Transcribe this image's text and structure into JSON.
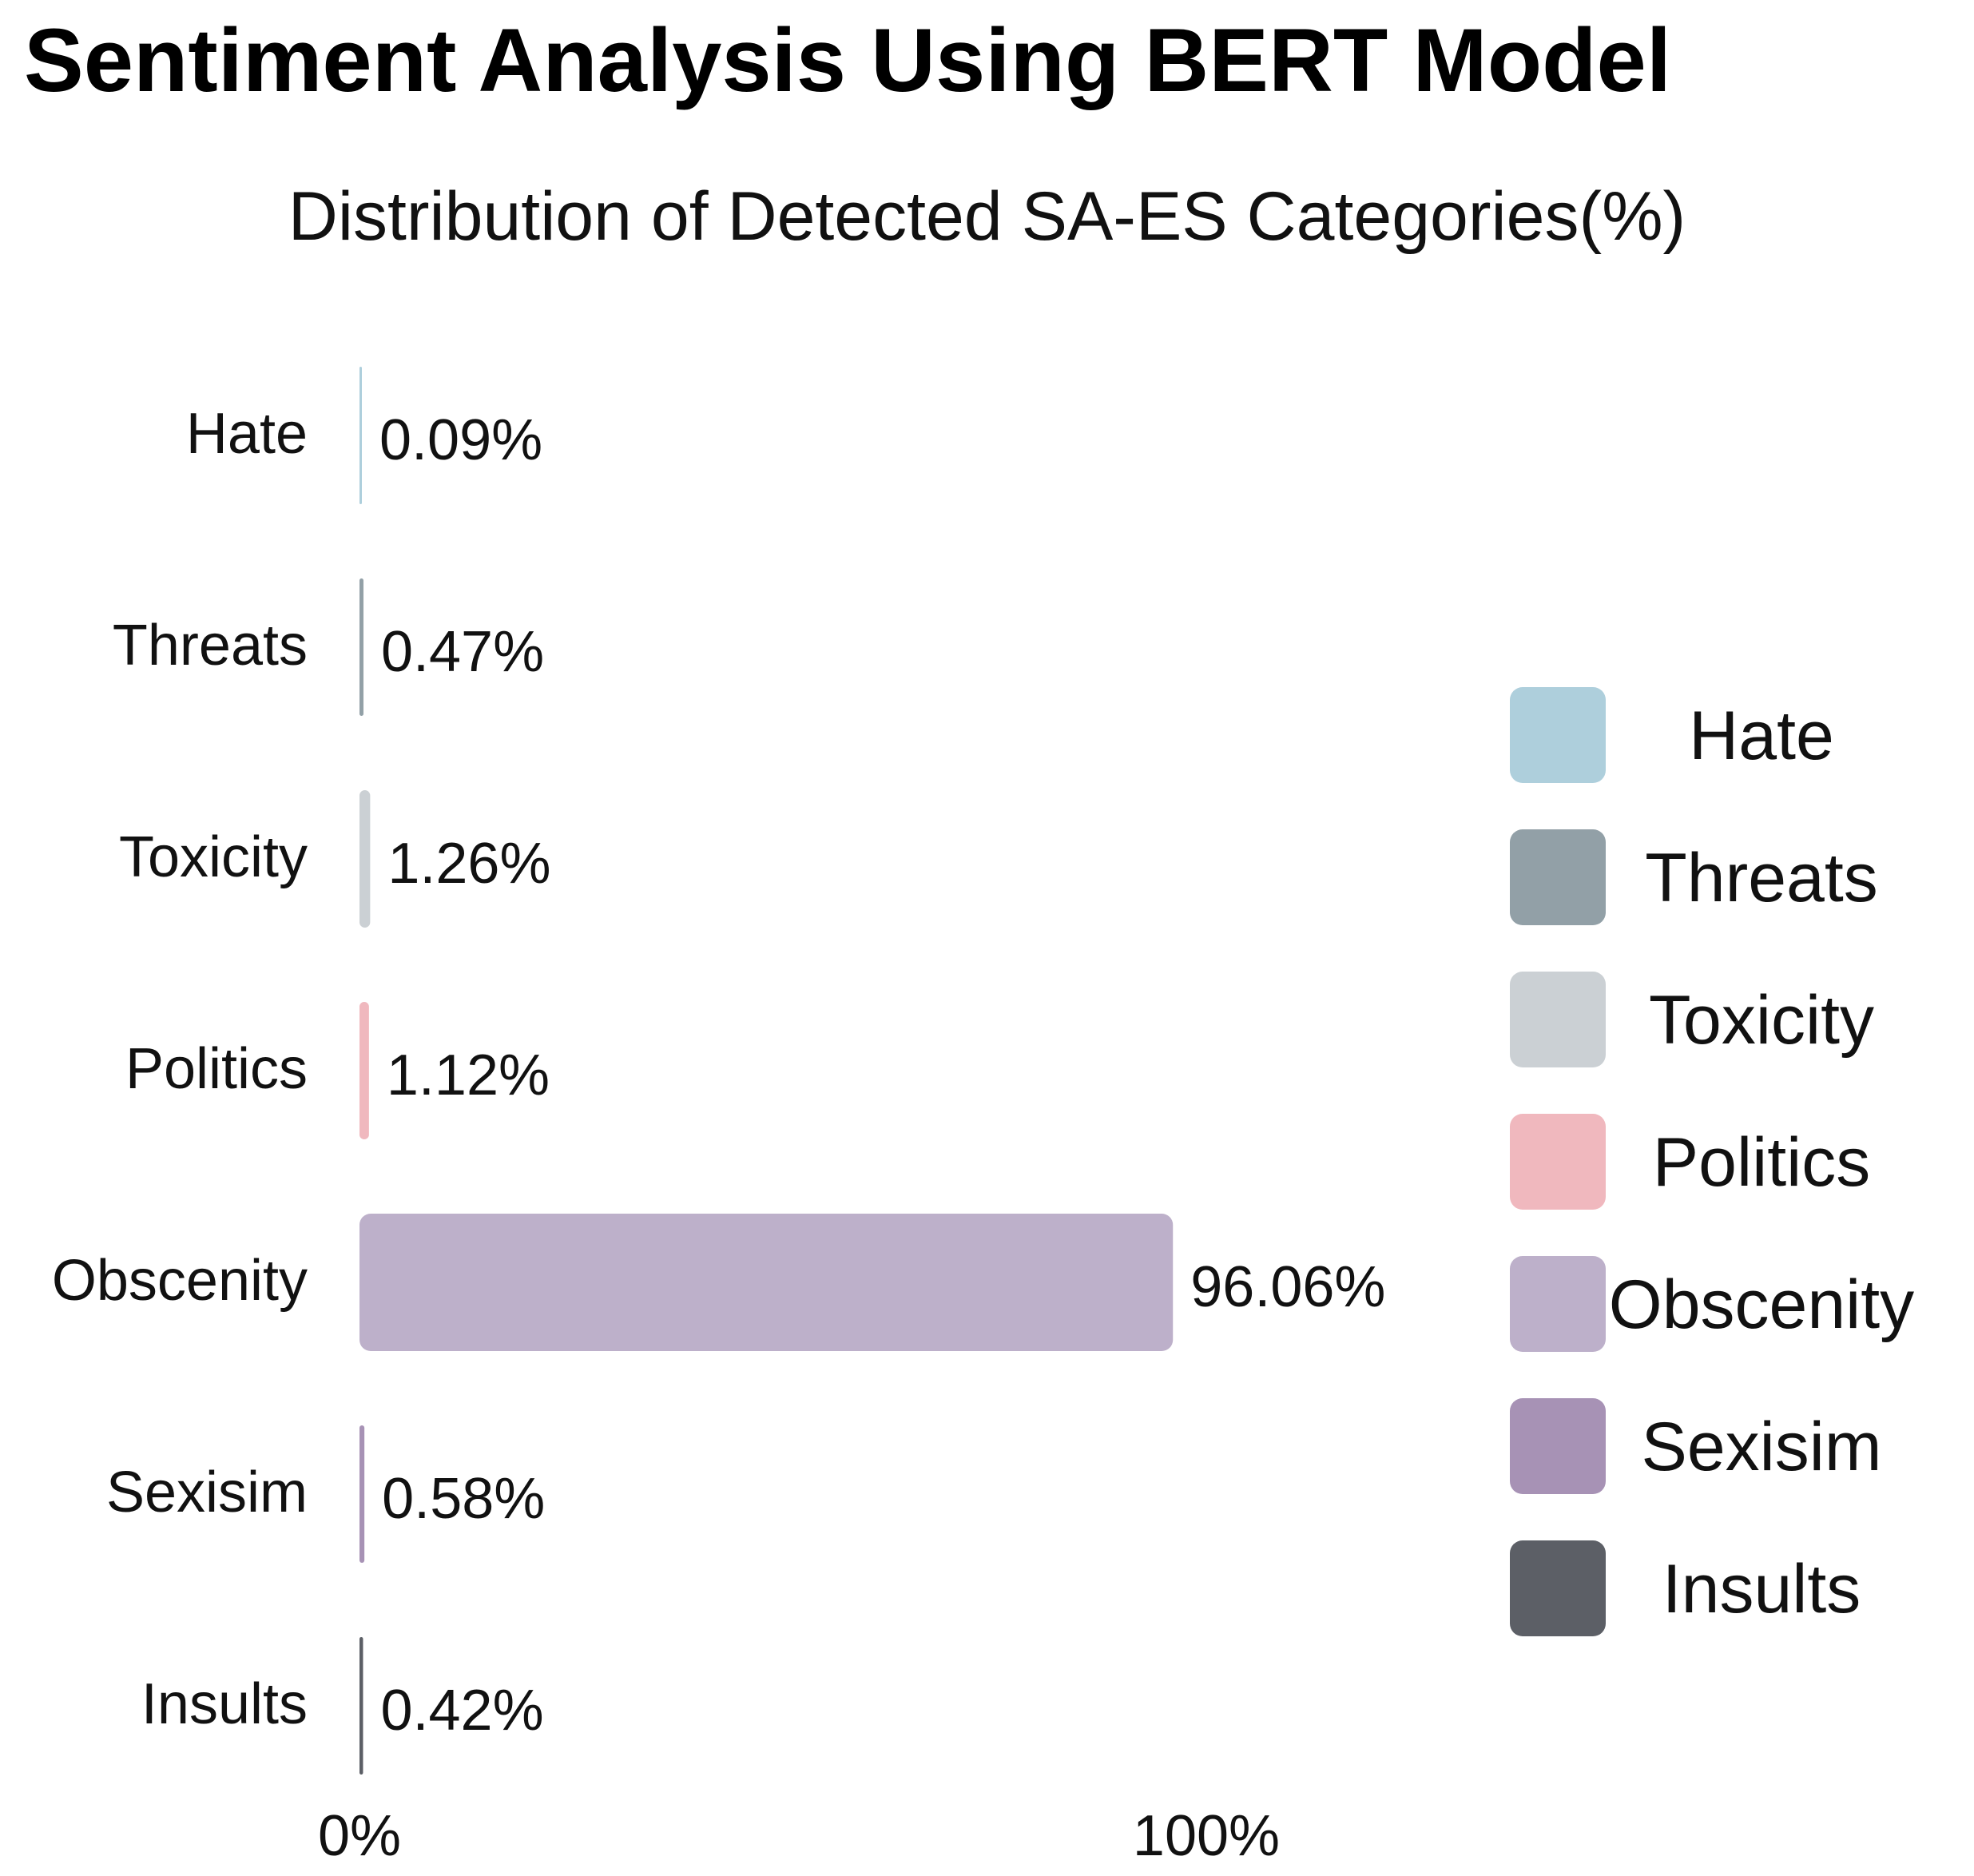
{
  "title": "Sentiment Analysis Using BERT Model",
  "chart_data": {
    "type": "bar",
    "orientation": "horizontal",
    "title": "Distribution of Detected SA-ES Categories(%)",
    "categories": [
      "Hate",
      "Threats",
      "Toxicity",
      "Politics",
      "Obscenity",
      "Sexisim",
      "Insults"
    ],
    "values": [
      0.09,
      0.47,
      1.26,
      1.12,
      96.06,
      0.58,
      0.42
    ],
    "value_labels": [
      "0.09%",
      "0.47%",
      "1.26%",
      "1.12%",
      "96.06%",
      "0.58%",
      "0.42%"
    ],
    "colors": [
      "#aecfdc",
      "#92a0a7",
      "#cbd0d4",
      "#f0b8be",
      "#bdb0ca",
      "#a792b5",
      "#5c5f66"
    ],
    "xlim": [
      0,
      100
    ],
    "x_ticks": [
      0,
      100
    ],
    "x_tick_labels": [
      "0%",
      "100%"
    ],
    "grid": false,
    "legend": {
      "position": "right",
      "entries": [
        "Hate",
        "Threats",
        "Toxicity",
        "Politics",
        "Obscenity",
        "Sexisim",
        "Insults"
      ]
    }
  }
}
